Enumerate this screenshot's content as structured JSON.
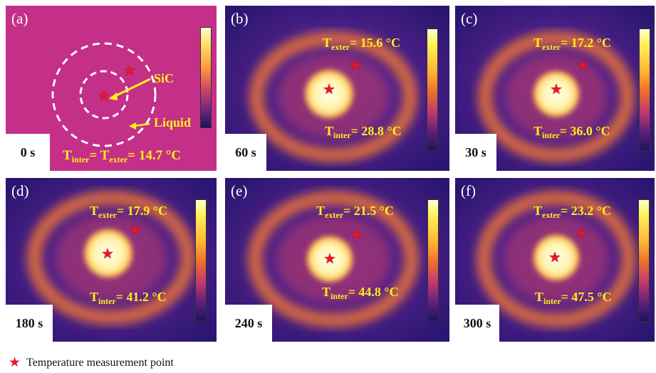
{
  "symbols": {
    "star": "★"
  },
  "panels": [
    {
      "id": "a",
      "label": "(a)",
      "time": "0 s",
      "annotations": {
        "sic": "SiC",
        "liquid": "Liquid"
      },
      "combined": {
        "t1": "T",
        "s1": "inter",
        "eq": "= ",
        "t2": "T",
        "s2": "exter",
        "val": "= 14.7 °C"
      }
    },
    {
      "id": "b",
      "label": "(b)",
      "time": "60 s",
      "exter": {
        "t": "T",
        "sub": "exter",
        "val": "= 15.6 °C"
      },
      "inter": {
        "t": "T",
        "sub": "inter",
        "val": "= 28.8 °C"
      }
    },
    {
      "id": "c",
      "label": "(c)",
      "time": "30 s",
      "exter": {
        "t": "T",
        "sub": "exter",
        "val": "= 17.2 °C"
      },
      "inter": {
        "t": "T",
        "sub": "inter",
        "val": "= 36.0 °C"
      }
    },
    {
      "id": "d",
      "label": "(d)",
      "time": "180 s",
      "exter": {
        "t": "T",
        "sub": "exter",
        "val": "= 17.9 °C"
      },
      "inter": {
        "t": "T",
        "sub": "inter",
        "val": "= 41.2 °C"
      }
    },
    {
      "id": "e",
      "label": "(e)",
      "time": "240 s",
      "exter": {
        "t": "T",
        "sub": "exter",
        "val": "= 21.5 °C"
      },
      "inter": {
        "t": "T",
        "sub": "inter",
        "val": "= 44.8 °C"
      }
    },
    {
      "id": "f",
      "label": "(f)",
      "time": "300 s",
      "exter": {
        "t": "T",
        "sub": "exter",
        "val": "= 23.2 °C"
      },
      "inter": {
        "t": "T",
        "sub": "inter",
        "val": "= 47.5 °C"
      }
    }
  ],
  "legend": {
    "text": "Temperature measurement point"
  },
  "colors": {
    "star": "#e8162a",
    "label": "#ffef1a",
    "panel_a_bg": "#c42f88"
  }
}
